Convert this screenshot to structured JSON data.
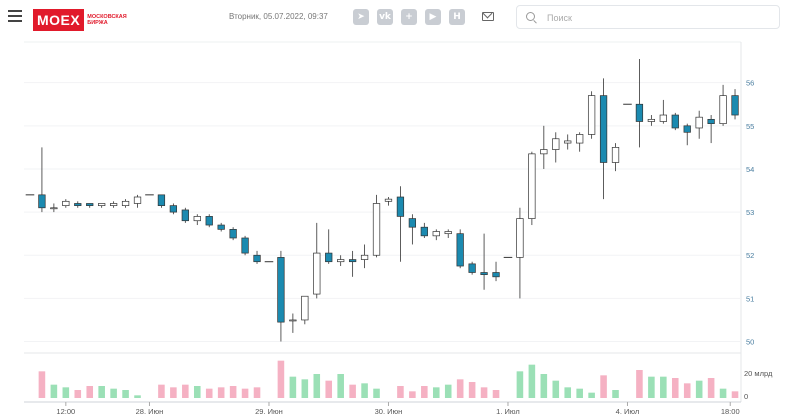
{
  "header": {
    "logo_text": "MOEX",
    "logo_sub1": "МОСКОВСКАЯ",
    "logo_sub2": "БИРЖА",
    "datetime": "Вторник, 05.07.2022, 09:37",
    "socials": [
      {
        "icon": "telegram-icon",
        "glyph": "➤"
      },
      {
        "icon": "vk-icon",
        "glyph": "vk"
      },
      {
        "icon": "plus-square-icon",
        "glyph": "+"
      },
      {
        "icon": "youtube-icon",
        "glyph": "▶"
      },
      {
        "icon": "h-icon",
        "glyph": "H"
      }
    ],
    "search_placeholder": "Поиск"
  },
  "colors": {
    "accent": "#e11a2b",
    "candle_down": "#1b8ab0",
    "candle_up_fill": "#ffffff",
    "candle_stroke": "#333333",
    "volume_up": "#9be0b6",
    "volume_down": "#f5b1c3",
    "axis_text": "#4a7ea0"
  },
  "chart_data": {
    "type": "candlestick",
    "y_ticks": [
      "56",
      "55",
      "54",
      "53",
      "52",
      "51",
      "50"
    ],
    "ylim": [
      49.85,
      56.85
    ],
    "x_labels": [
      "12:00",
      "28. Июн",
      "29. Июн",
      "30. Июн",
      "1. Июл",
      "4. Июл",
      "18:00"
    ],
    "volume_label": "20 млрд",
    "volume_ticks": [
      "20 млрд",
      "0"
    ],
    "volume_max": 30,
    "candles": [
      {
        "o": 53.4,
        "h": 53.4,
        "l": 53.4,
        "c": 53.4,
        "v": 0
      },
      {
        "o": 53.4,
        "h": 54.5,
        "l": 53.0,
        "c": 53.1,
        "v": 20
      },
      {
        "o": 53.1,
        "h": 53.2,
        "l": 53.0,
        "c": 53.1,
        "v": 10
      },
      {
        "o": 53.15,
        "h": 53.3,
        "l": 53.1,
        "c": 53.25,
        "v": 8
      },
      {
        "o": 53.2,
        "h": 53.25,
        "l": 53.1,
        "c": 53.15,
        "v": 6
      },
      {
        "o": 53.2,
        "h": 53.2,
        "l": 53.1,
        "c": 53.15,
        "v": 9
      },
      {
        "o": 53.15,
        "h": 53.2,
        "l": 53.1,
        "c": 53.2,
        "v": 9
      },
      {
        "o": 53.15,
        "h": 53.25,
        "l": 53.1,
        "c": 53.2,
        "v": 7
      },
      {
        "o": 53.15,
        "h": 53.3,
        "l": 53.1,
        "c": 53.25,
        "v": 6
      },
      {
        "o": 53.2,
        "h": 53.4,
        "l": 53.1,
        "c": 53.35,
        "v": 2
      },
      {
        "o": 53.4,
        "h": 53.4,
        "l": 53.4,
        "c": 53.4,
        "v": 0
      },
      {
        "o": 53.4,
        "h": 53.4,
        "l": 53.1,
        "c": 53.15,
        "v": 10
      },
      {
        "o": 53.15,
        "h": 53.2,
        "l": 52.95,
        "c": 53.0,
        "v": 8
      },
      {
        "o": 53.05,
        "h": 53.1,
        "l": 52.75,
        "c": 52.8,
        "v": 10
      },
      {
        "o": 52.8,
        "h": 52.95,
        "l": 52.7,
        "c": 52.9,
        "v": 9
      },
      {
        "o": 52.9,
        "h": 52.95,
        "l": 52.65,
        "c": 52.7,
        "v": 7
      },
      {
        "o": 52.7,
        "h": 52.75,
        "l": 52.55,
        "c": 52.6,
        "v": 8
      },
      {
        "o": 52.6,
        "h": 52.65,
        "l": 52.35,
        "c": 52.4,
        "v": 9
      },
      {
        "o": 52.4,
        "h": 52.45,
        "l": 52.0,
        "c": 52.05,
        "v": 7
      },
      {
        "o": 52.0,
        "h": 52.1,
        "l": 51.8,
        "c": 51.85,
        "v": 8
      },
      {
        "o": 51.85,
        "h": 51.85,
        "l": 51.85,
        "c": 51.85,
        "v": 0
      },
      {
        "o": 51.95,
        "h": 52.1,
        "l": 50.0,
        "c": 50.45,
        "v": 28
      },
      {
        "o": 50.5,
        "h": 50.65,
        "l": 50.2,
        "c": 50.5,
        "v": 16
      },
      {
        "o": 50.5,
        "h": 51.0,
        "l": 50.4,
        "c": 51.05,
        "v": 14
      },
      {
        "o": 51.1,
        "h": 52.75,
        "l": 51.0,
        "c": 52.05,
        "v": 18
      },
      {
        "o": 52.05,
        "h": 52.6,
        "l": 51.8,
        "c": 51.85,
        "v": 13
      },
      {
        "o": 51.85,
        "h": 52.0,
        "l": 51.75,
        "c": 51.9,
        "v": 18
      },
      {
        "o": 51.9,
        "h": 52.1,
        "l": 51.5,
        "c": 51.85,
        "v": 10
      },
      {
        "o": 51.9,
        "h": 52.25,
        "l": 51.7,
        "c": 52.0,
        "v": 11
      },
      {
        "o": 52.0,
        "h": 53.4,
        "l": 51.95,
        "c": 53.2,
        "v": 7
      },
      {
        "o": 53.25,
        "h": 53.35,
        "l": 53.15,
        "c": 53.3,
        "v": 0
      },
      {
        "o": 53.35,
        "h": 53.6,
        "l": 51.85,
        "c": 52.9,
        "v": 9
      },
      {
        "o": 52.85,
        "h": 52.95,
        "l": 52.25,
        "c": 52.65,
        "v": 5
      },
      {
        "o": 52.65,
        "h": 52.75,
        "l": 52.4,
        "c": 52.45,
        "v": 9
      },
      {
        "o": 52.45,
        "h": 52.6,
        "l": 52.35,
        "c": 52.55,
        "v": 8
      },
      {
        "o": 52.5,
        "h": 52.6,
        "l": 52.4,
        "c": 52.55,
        "v": 10
      },
      {
        "o": 52.5,
        "h": 52.6,
        "l": 51.7,
        "c": 51.75,
        "v": 14
      },
      {
        "o": 51.8,
        "h": 51.85,
        "l": 51.55,
        "c": 51.6,
        "v": 12
      },
      {
        "o": 51.6,
        "h": 52.5,
        "l": 51.2,
        "c": 51.55,
        "v": 8
      },
      {
        "o": 51.6,
        "h": 51.85,
        "l": 51.4,
        "c": 51.5,
        "v": 6
      },
      {
        "o": 51.95,
        "h": 51.95,
        "l": 51.95,
        "c": 51.95,
        "v": 0
      },
      {
        "o": 51.95,
        "h": 53.1,
        "l": 51.0,
        "c": 52.85,
        "v": 20
      },
      {
        "o": 52.85,
        "h": 54.4,
        "l": 52.7,
        "c": 54.35,
        "v": 25
      },
      {
        "o": 54.35,
        "h": 55.0,
        "l": 54.0,
        "c": 54.45,
        "v": 18
      },
      {
        "o": 54.45,
        "h": 54.85,
        "l": 54.15,
        "c": 54.7,
        "v": 13
      },
      {
        "o": 54.6,
        "h": 54.8,
        "l": 54.45,
        "c": 54.65,
        "v": 8
      },
      {
        "o": 54.6,
        "h": 54.85,
        "l": 54.4,
        "c": 54.8,
        "v": 7
      },
      {
        "o": 54.8,
        "h": 55.8,
        "l": 54.7,
        "c": 55.7,
        "v": 4
      },
      {
        "o": 55.7,
        "h": 56.1,
        "l": 53.3,
        "c": 54.15,
        "v": 17
      },
      {
        "o": 54.15,
        "h": 54.6,
        "l": 53.95,
        "c": 54.5,
        "v": 6
      },
      {
        "o": 55.5,
        "h": 55.5,
        "l": 55.5,
        "c": 55.5,
        "v": 0
      },
      {
        "o": 55.5,
        "h": 56.55,
        "l": 54.5,
        "c": 55.1,
        "v": 21
      },
      {
        "o": 55.1,
        "h": 55.25,
        "l": 55.0,
        "c": 55.15,
        "v": 16
      },
      {
        "o": 55.1,
        "h": 55.6,
        "l": 55.05,
        "c": 55.25,
        "v": 16
      },
      {
        "o": 55.25,
        "h": 55.3,
        "l": 54.9,
        "c": 54.95,
        "v": 15
      },
      {
        "o": 55.0,
        "h": 55.05,
        "l": 54.55,
        "c": 54.85,
        "v": 11
      },
      {
        "o": 54.95,
        "h": 55.35,
        "l": 54.7,
        "c": 55.2,
        "v": 13
      },
      {
        "o": 55.15,
        "h": 55.25,
        "l": 54.6,
        "c": 55.05,
        "v": 15
      },
      {
        "o": 55.05,
        "h": 55.95,
        "l": 55.0,
        "c": 55.7,
        "v": 7
      },
      {
        "o": 55.7,
        "h": 55.85,
        "l": 55.15,
        "c": 55.25,
        "v": 5
      }
    ]
  }
}
